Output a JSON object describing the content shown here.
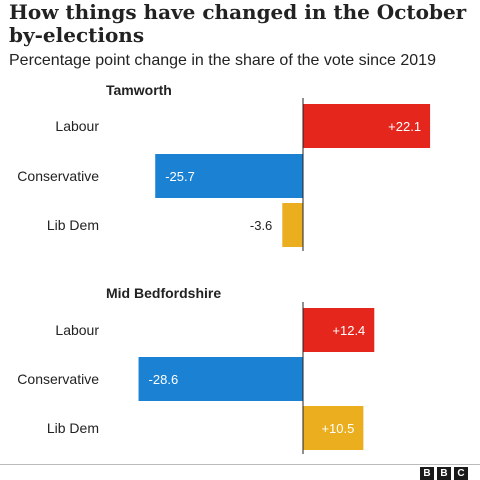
{
  "header": {
    "title": "How things have changed in the October by-elections",
    "subtitle": "Percentage point change in the share of the vote since 2019"
  },
  "colors": {
    "Labour": "#e4261c",
    "Conservative": "#1b82d3",
    "Lib Dem": "#ebae1f",
    "axis": "#222222"
  },
  "chart_data": [
    {
      "type": "bar",
      "orientation": "horizontal",
      "title": "Tamworth",
      "categories": [
        "Labour",
        "Conservative",
        "Lib Dem"
      ],
      "values": [
        22.1,
        -25.7,
        -3.6
      ],
      "labels": [
        "+22.1",
        "-25.7",
        "-3.6"
      ]
    },
    {
      "type": "bar",
      "orientation": "horizontal",
      "title": "Mid Bedfordshire",
      "categories": [
        "Labour",
        "Conservative",
        "Lib Dem"
      ],
      "values": [
        12.4,
        -28.6,
        10.5
      ],
      "labels": [
        "+12.4",
        "-28.6",
        "+10.5"
      ]
    }
  ],
  "footer": {
    "logo": [
      "B",
      "B",
      "C"
    ]
  }
}
